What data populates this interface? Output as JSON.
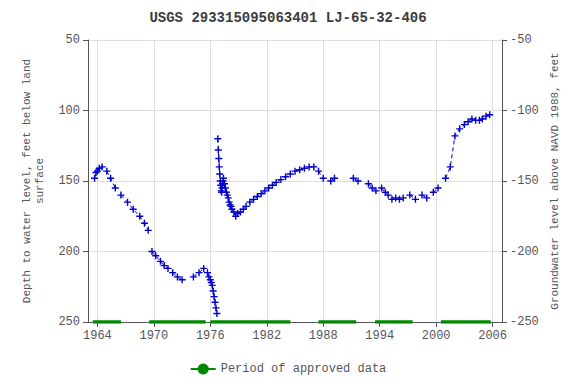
{
  "chart_data": {
    "type": "line",
    "title": "USGS 293315095063401 LJ-65-32-406",
    "ylabel": "Depth to water level, feet below land\nsurface",
    "y2label": "Groundwater level above NAVD 1988, feet",
    "xlim": [
      1963,
      2007
    ],
    "xticks": [
      1964,
      1970,
      1976,
      1982,
      1988,
      1994,
      2000,
      2006
    ],
    "ylim": [
      250,
      50
    ],
    "yticks": [
      50,
      100,
      150,
      200,
      250
    ],
    "y2lim": [
      -250,
      -50
    ],
    "y2ticks": [
      -50,
      -100,
      -150,
      -200,
      -250
    ],
    "grid": true,
    "legend": "bottom",
    "series": [
      {
        "color": "#0000CC",
        "line_style": "dashed",
        "marker": "plus",
        "x": [
          1963.7,
          1963.85,
          1964.0,
          1964.2,
          1964.5
        ],
        "values": [
          148,
          144,
          143,
          141,
          140
        ]
      },
      {
        "color": "#0000CC",
        "line_style": "dashed",
        "marker": "plus",
        "x": [
          1965.0,
          1965.4,
          1965.9
        ],
        "values": [
          143,
          148,
          155
        ]
      },
      {
        "color": "#0000CC",
        "line_style": "dashed",
        "marker": "plus",
        "x": [
          1966.5,
          1967.2,
          1967.8,
          1968.5,
          1969.0,
          1969.4
        ],
        "values": [
          160,
          165,
          170,
          175,
          180,
          185
        ]
      },
      {
        "color": "#0000CC",
        "line_style": "dashed",
        "marker": "plus",
        "x": [
          1969.8,
          1970.2,
          1970.7,
          1971.1,
          1971.5
        ],
        "values": [
          200,
          203,
          207,
          210,
          212
        ]
      },
      {
        "color": "#0000CC",
        "line_style": "dashed",
        "marker": "plus",
        "x": [
          1972.0,
          1972.5,
          1973.0
        ],
        "values": [
          215,
          218,
          220
        ]
      },
      {
        "color": "#0000CC",
        "line_style": "dashed",
        "marker": "plus",
        "x": [
          1974.2,
          1974.8,
          1975.3
        ],
        "values": [
          218,
          215,
          212
        ]
      },
      {
        "color": "#0000CC",
        "line_style": "dashed",
        "marker": "plus",
        "x": [
          1975.7,
          1975.85,
          1976.0,
          1976.1,
          1976.2,
          1976.3,
          1976.4,
          1976.5,
          1976.6,
          1976.7
        ],
        "values": [
          215,
          218,
          220,
          222,
          224,
          228,
          232,
          236,
          240,
          244
        ]
      },
      {
        "color": "#0000CC",
        "line_style": "dashed",
        "marker": "plus",
        "x": [
          1976.8,
          1976.85,
          1976.9,
          1976.95,
          1977.0,
          1977.05,
          1977.1,
          1977.15,
          1977.2,
          1977.25,
          1977.3,
          1977.35,
          1977.4,
          1977.5,
          1977.6,
          1977.7,
          1977.8,
          1977.9,
          1978.0,
          1978.1,
          1978.2,
          1978.3,
          1978.5,
          1978.7,
          1978.9,
          1979.2,
          1979.5,
          1979.8
        ],
        "values": [
          120,
          128,
          134,
          140,
          145,
          150,
          153,
          157,
          158,
          155,
          152,
          150,
          148,
          152,
          155,
          158,
          160,
          162,
          165,
          167,
          168,
          170,
          172,
          175,
          173,
          172,
          170,
          168
        ]
      },
      {
        "color": "#0000CC",
        "line_style": "dashed",
        "marker": "plus",
        "x": [
          1980.2,
          1980.6,
          1981.0,
          1981.4,
          1981.8,
          1982.2,
          1982.6,
          1983.0,
          1983.5,
          1984.0,
          1984.5
        ],
        "values": [
          165,
          163,
          161,
          159,
          157,
          155,
          153,
          151,
          149,
          147,
          145
        ]
      },
      {
        "color": "#0000CC",
        "line_style": "dashed",
        "marker": "plus",
        "x": [
          1985.0,
          1985.5,
          1986.0,
          1986.5,
          1987.0
        ],
        "values": [
          143,
          142,
          141,
          140,
          140
        ]
      },
      {
        "color": "#0000CC",
        "line_style": "dashed",
        "marker": "plus",
        "x": [
          1987.5,
          1988.0
        ],
        "values": [
          143,
          148
        ]
      },
      {
        "color": "#0000CC",
        "line_style": "dashed",
        "marker": "plus",
        "x": [
          1988.8,
          1989.2
        ],
        "values": [
          150,
          148
        ]
      },
      {
        "color": "#0000CC",
        "line_style": "dashed",
        "marker": "plus",
        "x": [
          1991.2,
          1991.7
        ],
        "values": [
          148,
          150
        ]
      },
      {
        "color": "#0000CC",
        "line_style": "dashed",
        "marker": "plus",
        "x": [
          1992.8,
          1993.2,
          1993.6
        ],
        "values": [
          152,
          155,
          157
        ]
      },
      {
        "color": "#0000CC",
        "line_style": "dashed",
        "marker": "plus",
        "x": [
          1994.2,
          1994.6,
          1994.9,
          1995.3,
          1995.7,
          1996.1,
          1996.5
        ],
        "values": [
          155,
          158,
          160,
          163,
          162,
          163,
          162
        ]
      },
      {
        "color": "#0000CC",
        "line_style": "dashed",
        "marker": "plus",
        "x": [
          1997.2,
          1997.8
        ],
        "values": [
          160,
          163
        ]
      },
      {
        "color": "#0000CC",
        "line_style": "dashed",
        "marker": "plus",
        "x": [
          1998.5,
          1999.0
        ],
        "values": [
          160,
          162
        ]
      },
      {
        "color": "#0000CC",
        "line_style": "dashed",
        "marker": "plus",
        "x": [
          1999.7,
          2000.2
        ],
        "values": [
          158,
          155
        ]
      },
      {
        "color": "#0000CC",
        "line_style": "dashed",
        "marker": "plus",
        "x": [
          2001.0,
          2001.5,
          2002.0,
          2002.5,
          2003.0,
          2003.4,
          2003.8,
          2004.2,
          2004.6,
          2004.9,
          2005.3,
          2005.7
        ],
        "values": [
          148,
          140,
          118,
          113,
          110,
          108,
          106,
          107,
          107,
          106,
          104,
          103
        ]
      },
      {
        "name": "Period of approved data",
        "type": "range",
        "color": "#008800",
        "y": 250,
        "ranges": [
          [
            1963.5,
            1966.5
          ],
          [
            1969.5,
            1975.5
          ],
          [
            1976.0,
            1984.5
          ],
          [
            1987.5,
            1991.5
          ],
          [
            1993.5,
            1997.5
          ],
          [
            2000.5,
            2005.8
          ]
        ]
      }
    ]
  }
}
